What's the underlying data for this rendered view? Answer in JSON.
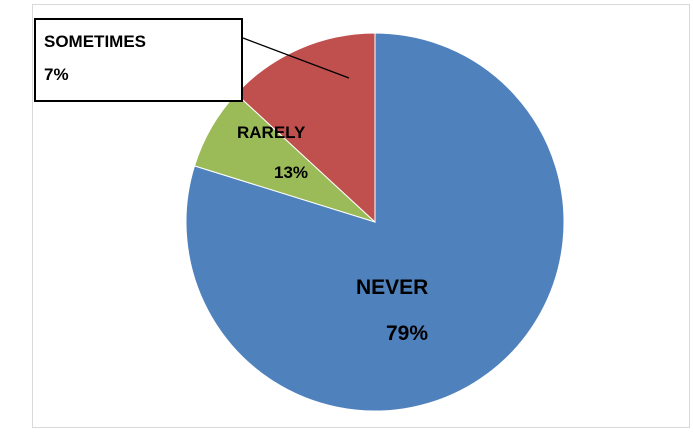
{
  "chart_data": {
    "type": "pie",
    "title": "",
    "slices": [
      {
        "label": "NEVER",
        "value": 79,
        "value_label": "79%",
        "color": "#4f81bd"
      },
      {
        "label": "SOMETIMES",
        "value": 7,
        "value_label": "7%",
        "color": "#9bbb59"
      },
      {
        "label": "RARELY",
        "value": 13,
        "value_label": "13%",
        "color": "#c0504d"
      }
    ],
    "legend": "none",
    "label_style": "data labels (SOMETIMES label outside in a boxed callout with leader line)"
  },
  "colors": {
    "border": "#d9d9d9",
    "label_dark": "#000000",
    "callout_border": "#000000"
  }
}
